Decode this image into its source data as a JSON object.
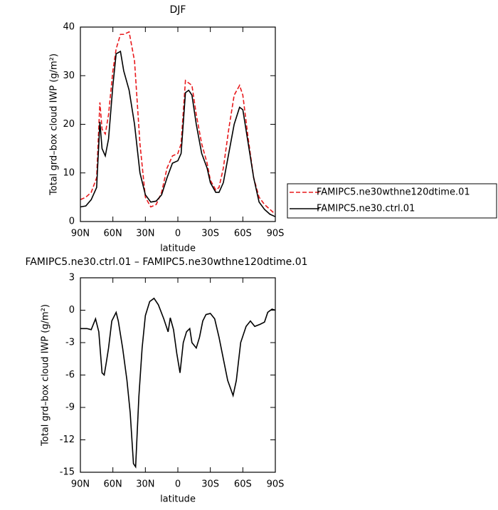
{
  "chart_data": [
    {
      "type": "line",
      "title": "DJF",
      "xlabel": "latitude",
      "ylabel": "Total grd–box cloud IWP (g/m²)",
      "x": [
        90,
        85,
        80,
        75,
        72,
        70,
        67,
        64,
        60,
        57,
        53,
        50,
        45,
        40,
        35,
        30,
        25,
        20,
        15,
        10,
        5,
        0,
        -3,
        -7,
        -10,
        -13,
        -17,
        -22,
        -27,
        -30,
        -35,
        -38,
        -42,
        -47,
        -52,
        -57,
        -60,
        -65,
        -70,
        -75,
        -80,
        -85,
        -90
      ],
      "series": [
        {
          "name": "FAMIPC5.ne30wthne120dtime.01",
          "color": "#e8191c",
          "style": "dashed",
          "values": [
            4.5,
            5,
            6,
            9,
            24.5,
            19,
            18,
            22,
            31,
            35.5,
            38.5,
            38.5,
            39,
            33,
            16,
            5,
            3,
            3.5,
            6,
            11,
            13.5,
            14,
            16,
            29,
            28.5,
            28,
            22,
            16,
            12,
            8.5,
            6.5,
            7,
            11,
            19,
            26,
            28,
            26,
            17,
            9,
            5,
            3.5,
            2.5,
            1.5
          ]
        },
        {
          "name": "FAMIPC5.ne30.ctrl.01",
          "color": "#000000",
          "style": "solid",
          "values": [
            3,
            3.2,
            4.5,
            7,
            20.5,
            15,
            13.5,
            17,
            28,
            34.5,
            35,
            31,
            27,
            20,
            10,
            5.5,
            4,
            4.2,
            5.5,
            9,
            12,
            12.5,
            14,
            26.5,
            27,
            26,
            20,
            14,
            11,
            8,
            6,
            6,
            8,
            14,
            20,
            23.5,
            23,
            16,
            9,
            4,
            2.5,
            1.5,
            1
          ]
        }
      ],
      "xlim": [
        90,
        -90
      ],
      "xticks": [
        {
          "value": 90,
          "label": "90N"
        },
        {
          "value": 60,
          "label": "60N"
        },
        {
          "value": 30,
          "label": "30N"
        },
        0,
        {
          "value": -30,
          "label": "30S"
        },
        {
          "value": -60,
          "label": "60S"
        },
        {
          "value": -90,
          "label": "90S"
        }
      ],
      "ylim": [
        0,
        40
      ],
      "yticks": [
        0,
        10,
        20,
        30,
        40
      ],
      "legend": "right"
    },
    {
      "type": "line",
      "title": "FAMIPC5.ne30.ctrl.01 – FAMIPC5.ne30wthne120dtime.01",
      "xlabel": "latitude",
      "ylabel": "Total grd–box cloud IWP (g/m²)",
      "x": [
        90,
        84,
        80,
        76,
        73,
        70,
        68,
        66,
        64,
        61,
        57,
        55,
        51,
        47,
        44,
        41,
        39,
        36,
        33,
        30,
        26,
        22,
        18,
        13,
        9,
        7,
        4,
        1,
        -2,
        -5,
        -8,
        -11,
        -13,
        -17,
        -20,
        -23,
        -26,
        -30,
        -34,
        -38,
        -41,
        -46,
        -51,
        -54,
        -58,
        -63,
        -67,
        -71,
        -76,
        -80,
        -83,
        -87,
        -90
      ],
      "series": [
        {
          "color": "#000000",
          "style": "solid",
          "values": [
            -1.7,
            -1.7,
            -1.8,
            -0.8,
            -2,
            -5.8,
            -6,
            -4.8,
            -3.5,
            -1,
            -0.2,
            -1,
            -3.5,
            -6.5,
            -9.5,
            -14.2,
            -14.5,
            -8,
            -3.5,
            -0.5,
            0.8,
            1.1,
            0.5,
            -0.8,
            -2,
            -0.7,
            -1.8,
            -4,
            -5.8,
            -3,
            -2,
            -1.7,
            -3,
            -3.5,
            -2.5,
            -1,
            -0.4,
            -0.3,
            -0.8,
            -2.5,
            -4,
            -6.5,
            -7.9,
            -6.5,
            -3,
            -1.5,
            -1,
            -1.5,
            -1.3,
            -1.1,
            -0.2,
            0.1,
            0
          ]
        }
      ],
      "xlim": [
        90,
        -90
      ],
      "xticks": [
        {
          "value": 90,
          "label": "90N"
        },
        {
          "value": 60,
          "label": "60N"
        },
        {
          "value": 30,
          "label": "30N"
        },
        0,
        {
          "value": -30,
          "label": "30S"
        },
        {
          "value": -60,
          "label": "60S"
        },
        {
          "value": -90,
          "label": "90S"
        }
      ],
      "ylim": [
        -15,
        3
      ],
      "yticks": [
        3,
        0,
        -3,
        -6,
        -9,
        -12,
        -15
      ]
    }
  ]
}
